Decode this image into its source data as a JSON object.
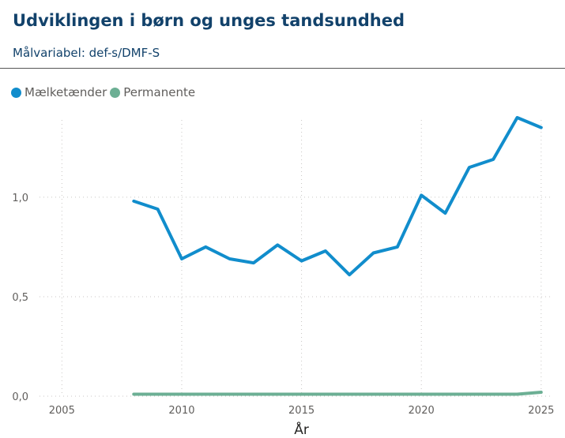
{
  "header": {
    "title": "Udviklingen i børn og unges tandsundhed",
    "subtitle": "Målvariabel: def-s/DMF-S"
  },
  "chart_data": {
    "type": "line",
    "title": "Udviklingen i børn og unges tandsundhed",
    "subtitle": "Målvariabel: def-s/DMF-S",
    "xlabel": "År",
    "ylabel": "",
    "xlim": [
      2004,
      2025.5
    ],
    "ylim": [
      0,
      1.42
    ],
    "x_ticks": [
      2005,
      2010,
      2015,
      2020,
      2025
    ],
    "y_ticks": [
      0.0,
      0.5,
      1.0
    ],
    "y_tick_labels": [
      "0,0",
      "0,5",
      "1,0"
    ],
    "grid": true,
    "legend_position": "top-left",
    "x": [
      2008,
      2009,
      2010,
      2011,
      2012,
      2013,
      2014,
      2015,
      2016,
      2017,
      2018,
      2019,
      2020,
      2021,
      2022,
      2023,
      2024,
      2025
    ],
    "series": [
      {
        "name": "Mælketænder",
        "color": "#118dcc",
        "values": [
          0.98,
          0.94,
          0.69,
          0.75,
          0.69,
          0.67,
          0.76,
          0.68,
          0.73,
          0.61,
          0.72,
          0.75,
          1.01,
          0.92,
          1.15,
          1.19,
          1.4,
          1.35
        ]
      },
      {
        "name": "Permanente",
        "color": "#6caf94",
        "values": [
          0.01,
          0.01,
          0.01,
          0.01,
          0.01,
          0.01,
          0.01,
          0.01,
          0.01,
          0.01,
          0.01,
          0.01,
          0.01,
          0.01,
          0.01,
          0.01,
          0.01,
          0.02
        ]
      }
    ]
  }
}
